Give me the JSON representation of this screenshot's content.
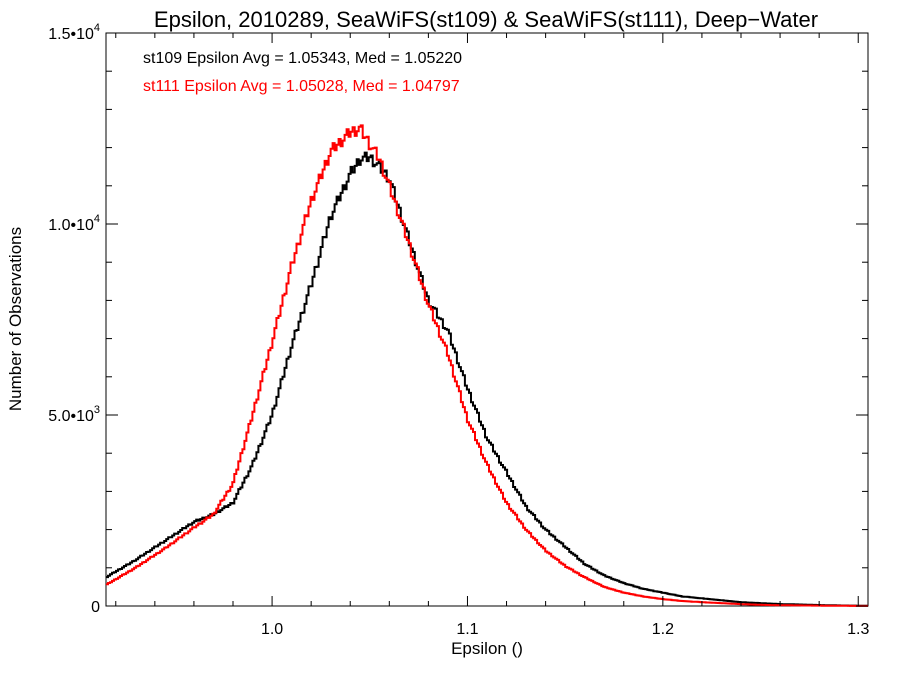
{
  "chart_data": {
    "type": "line",
    "style": "step-histogram",
    "title": "Epsilon, 2010289, SeaWiFS(st109) & SeaWiFS(st111), Deep−Water",
    "xlabel": "Epsilon ()",
    "ylabel": "Number of Observations",
    "xlim": [
      0.915,
      1.305
    ],
    "ylim": [
      0,
      15000
    ],
    "grid": false,
    "x_ticks": [
      {
        "value": 1.0,
        "label": "1.0"
      },
      {
        "value": 1.1,
        "label": "1.1"
      },
      {
        "value": 1.2,
        "label": "1.2"
      },
      {
        "value": 1.3,
        "label": "1.3"
      }
    ],
    "y_ticks": [
      {
        "value": 0,
        "mant": "0",
        "exp": ""
      },
      {
        "value": 5000,
        "mant": "5.0•10",
        "exp": "3"
      },
      {
        "value": 10000,
        "mant": "1.0•10",
        "exp": "4"
      },
      {
        "value": 15000,
        "mant": "1.5•10",
        "exp": "4"
      }
    ],
    "annotations": [
      {
        "text": "st109 Epsilon Avg = 1.05343, Med = 1.05220",
        "color": "#000000"
      },
      {
        "text": "st111 Epsilon Avg = 1.05028, Med = 1.04797",
        "color": "#ff0000"
      }
    ],
    "series": [
      {
        "color": "#000000",
        "x": [
          0.915,
          0.93,
          0.945,
          0.96,
          0.97,
          0.98,
          0.99,
          1.0,
          1.01,
          1.02,
          1.03,
          1.04,
          1.045,
          1.05,
          1.055,
          1.06,
          1.07,
          1.08,
          1.09,
          1.1,
          1.11,
          1.12,
          1.13,
          1.14,
          1.15,
          1.16,
          1.17,
          1.18,
          1.19,
          1.2,
          1.21,
          1.22,
          1.23,
          1.24,
          1.25,
          1.26,
          1.27,
          1.28,
          1.29,
          1.305
        ],
        "y": [
          750,
          1200,
          1700,
          2200,
          2400,
          2700,
          3700,
          5000,
          6800,
          8400,
          10200,
          11300,
          11700,
          11750,
          11500,
          11200,
          9600,
          8000,
          7200,
          5700,
          4400,
          3500,
          2600,
          2000,
          1550,
          1100,
          800,
          600,
          450,
          350,
          250,
          200,
          150,
          100,
          75,
          50,
          40,
          25,
          15,
          5
        ]
      },
      {
        "color": "#ff0000",
        "x": [
          0.915,
          0.93,
          0.945,
          0.96,
          0.97,
          0.98,
          0.99,
          1.0,
          1.01,
          1.02,
          1.03,
          1.04,
          1.045,
          1.05,
          1.055,
          1.06,
          1.07,
          1.08,
          1.09,
          1.1,
          1.11,
          1.12,
          1.13,
          1.14,
          1.15,
          1.16,
          1.17,
          1.18,
          1.19,
          1.2,
          1.21,
          1.22,
          1.23,
          1.24,
          1.25,
          1.26,
          1.27,
          1.28,
          1.29,
          1.305
        ],
        "y": [
          550,
          1000,
          1500,
          2050,
          2400,
          3200,
          5000,
          6900,
          8900,
          10600,
          11900,
          12400,
          12500,
          12100,
          11700,
          11000,
          9500,
          7900,
          6600,
          4900,
          3700,
          2700,
          2000,
          1450,
          1050,
          750,
          500,
          350,
          250,
          180,
          130,
          100,
          75,
          50,
          30,
          20,
          15,
          10,
          5,
          2
        ]
      }
    ]
  }
}
